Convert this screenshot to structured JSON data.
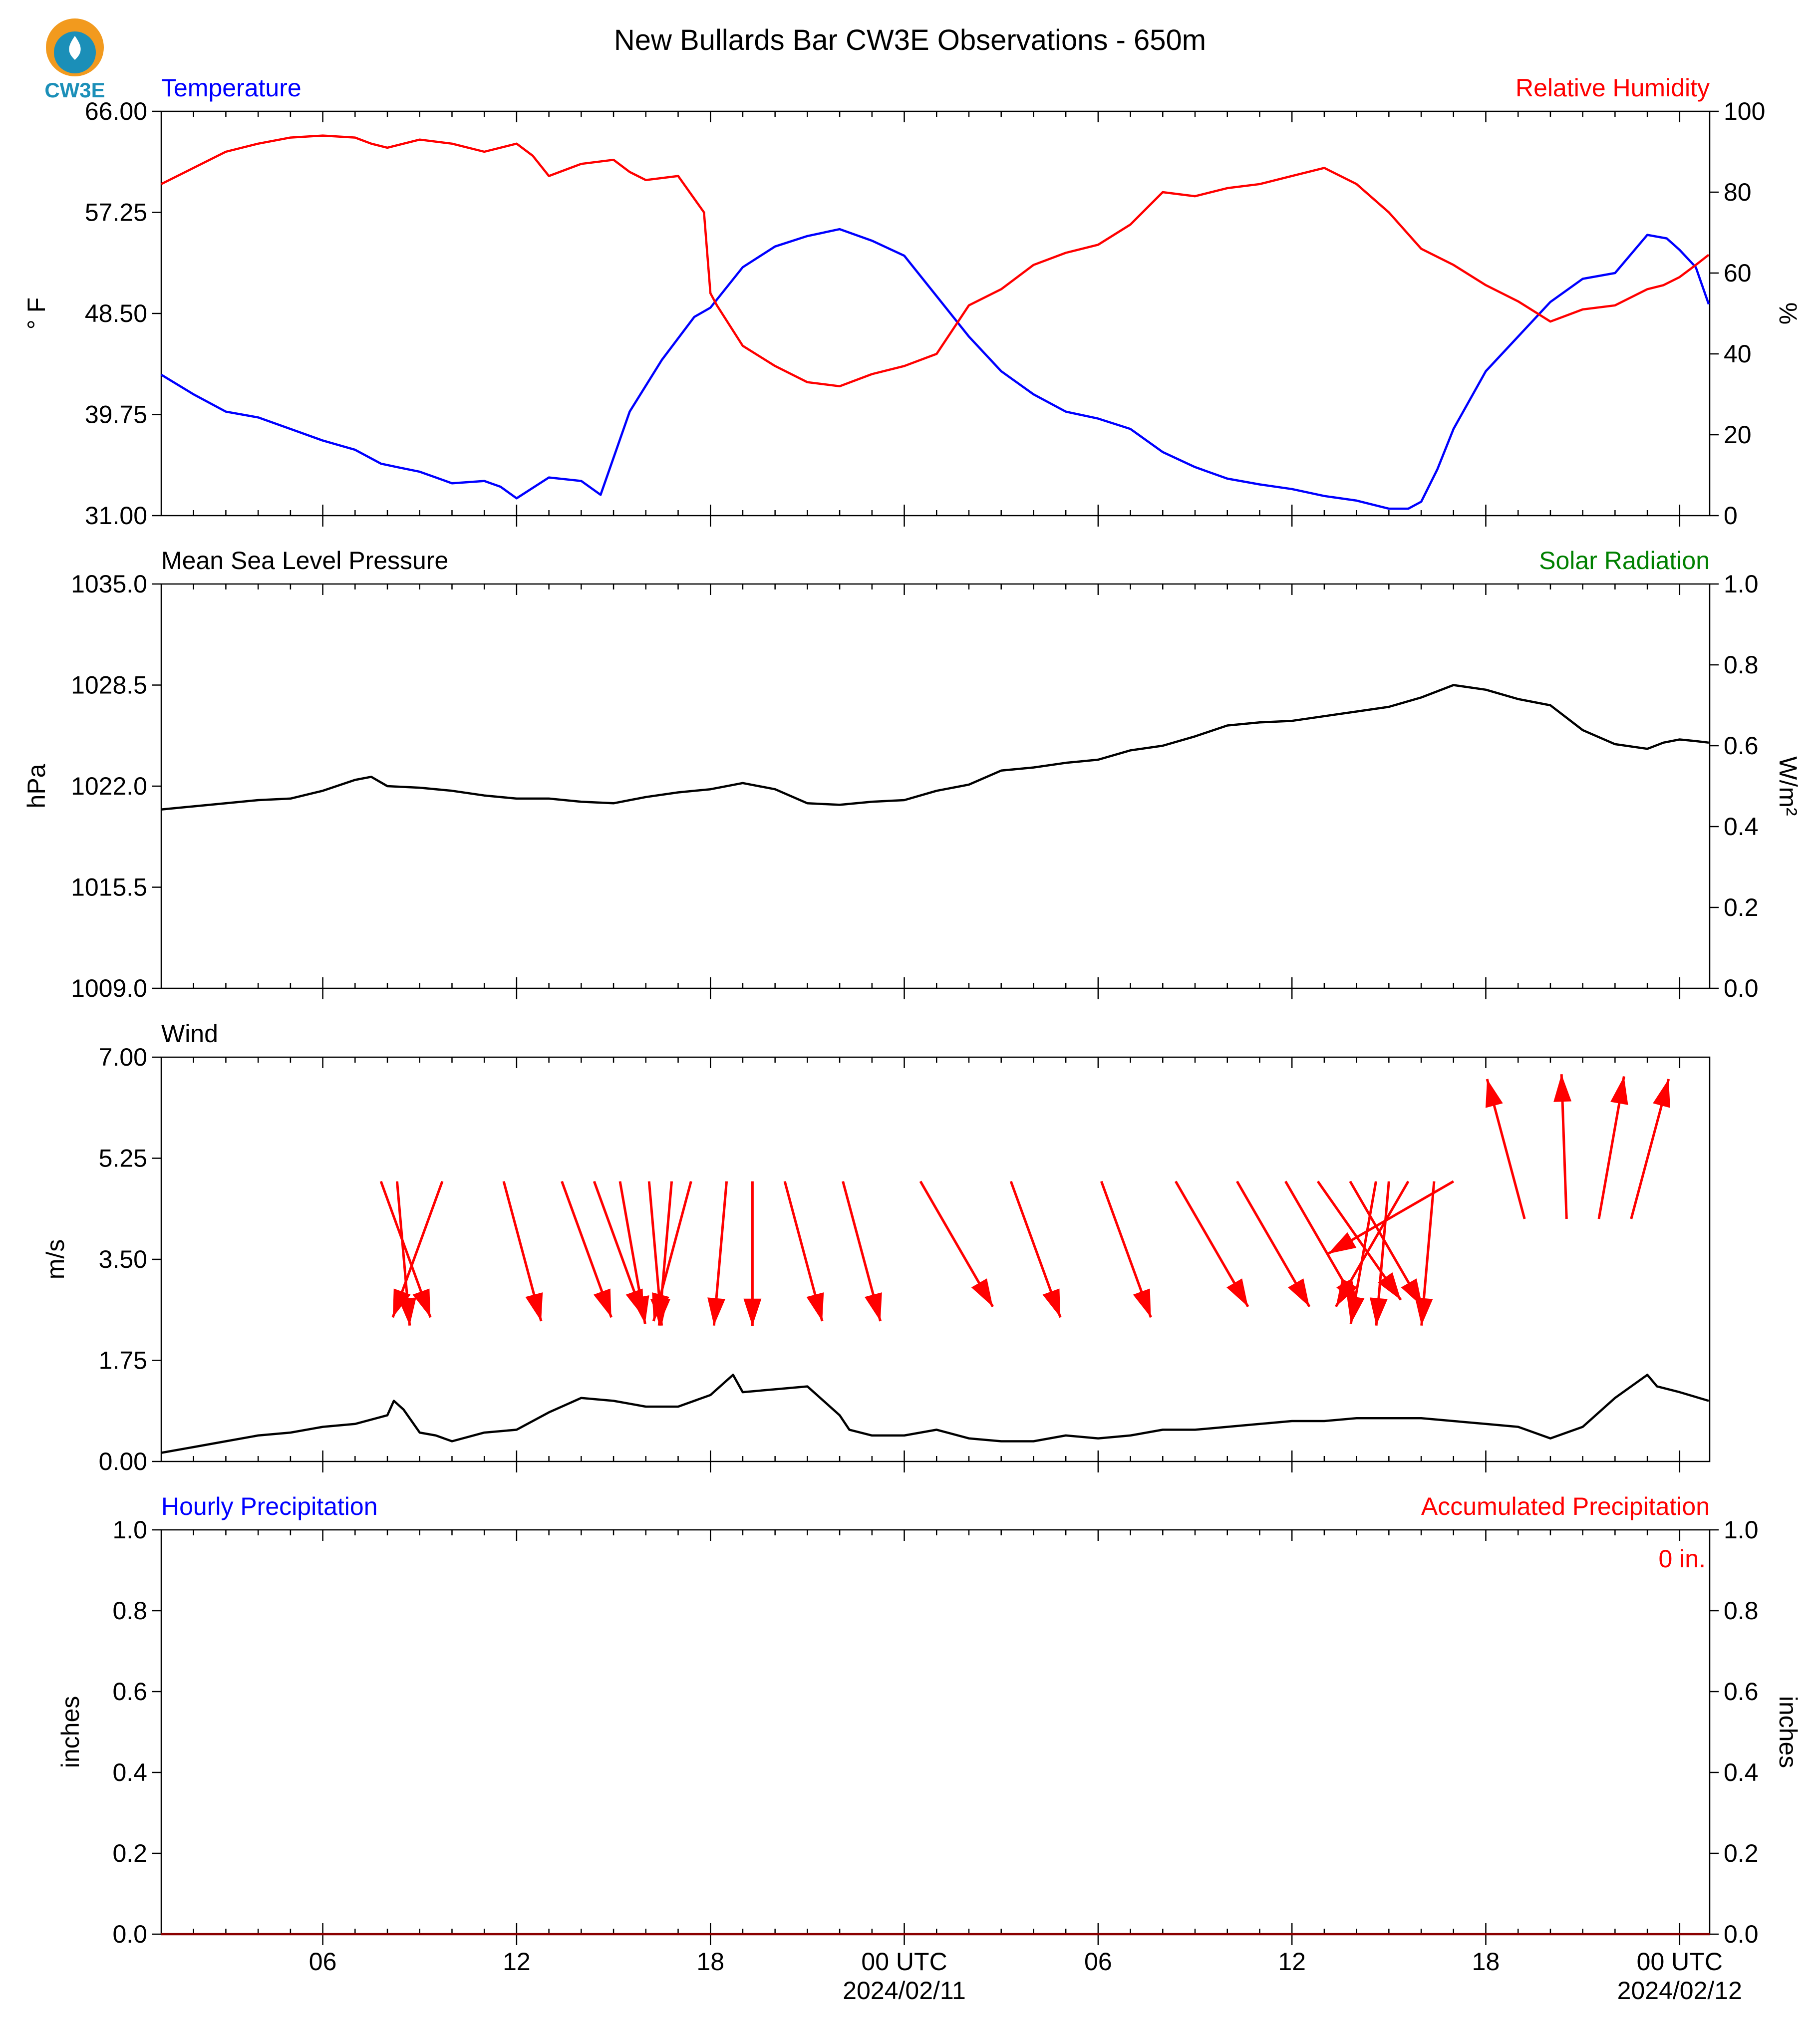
{
  "title": "New Bullards Bar CW3E Observations - 650m",
  "logo": {
    "text": "CW3E",
    "colors": [
      "#f29a1e",
      "#1b8fb8"
    ]
  },
  "colors": {
    "temperature": "#0000ff",
    "humidity": "#ff0000",
    "solar": "#008000",
    "black": "#000000"
  },
  "x_axis": {
    "start_hour": 1,
    "end_hour": 48.93,
    "ticks": [
      {
        "hour": 6,
        "label": "06",
        "date": ""
      },
      {
        "hour": 12,
        "label": "12",
        "date": ""
      },
      {
        "hour": 18,
        "label": "18",
        "date": ""
      },
      {
        "hour": 24,
        "label": "00 UTC",
        "date": "2024/02/11"
      },
      {
        "hour": 30,
        "label": "06",
        "date": ""
      },
      {
        "hour": 36,
        "label": "12",
        "date": ""
      },
      {
        "hour": 42,
        "label": "18",
        "date": ""
      },
      {
        "hour": 48,
        "label": "00 UTC",
        "date": "2024/02/12"
      }
    ]
  },
  "chart_data": [
    {
      "type": "line",
      "id": "temperature-humidity",
      "left_title": "Temperature",
      "right_title": "Relative Humidity",
      "ylabel": "° F",
      "ylabel_right": "%",
      "ylim": [
        31,
        66
      ],
      "ylim_right": [
        0,
        100
      ],
      "yticks": [
        "31.00",
        "39.75",
        "48.50",
        "57.25",
        "66.00"
      ],
      "yticks_right": [
        "0",
        "20",
        "40",
        "60",
        "80",
        "100"
      ],
      "series": [
        {
          "name": "Temperature",
          "axis": "left",
          "color": "#0000ff",
          "x": [
            1,
            2,
            3,
            4,
            5,
            6,
            7,
            7.8,
            8.3,
            9,
            10,
            11,
            11.5,
            12,
            13,
            14,
            14.6,
            15.5,
            16.5,
            17.5,
            18,
            19,
            20,
            21,
            22,
            23,
            24,
            25,
            26,
            27,
            28,
            29,
            30,
            31,
            32,
            33,
            34,
            35,
            36,
            37,
            38,
            39,
            39.6,
            40,
            40.5,
            41,
            42,
            43,
            44,
            45,
            46,
            47,
            47.6,
            48,
            48.5,
            48.9
          ],
          "y": [
            43.2,
            41.5,
            40,
            39.5,
            38.5,
            37.5,
            36.7,
            35.5,
            35.2,
            34.8,
            33.8,
            34,
            33.5,
            32.5,
            34.3,
            34,
            32.8,
            40,
            44.5,
            48.2,
            49,
            52.5,
            54.3,
            55.2,
            55.8,
            54.8,
            53.5,
            50,
            46.5,
            43.5,
            41.5,
            40,
            39.4,
            38.5,
            36.5,
            35.2,
            34.2,
            33.7,
            33.3,
            32.7,
            32.3,
            31.6,
            31.6,
            32.2,
            35,
            38.5,
            43.5,
            46.5,
            49.5,
            51.5,
            52,
            55.3,
            55,
            54,
            52.5,
            49.3
          ]
        },
        {
          "name": "Relative Humidity",
          "axis": "right",
          "color": "#ff0000",
          "x": [
            1,
            2,
            3,
            4,
            5,
            6,
            7,
            7.5,
            8,
            9,
            10,
            11,
            12,
            12.5,
            13,
            14,
            15,
            15.5,
            16,
            17,
            17.8,
            18,
            18.2,
            19,
            20,
            21,
            22,
            23,
            24,
            25,
            26,
            27,
            28,
            29,
            30,
            31,
            32,
            33,
            34,
            35,
            36,
            37,
            38,
            39,
            40,
            41,
            42,
            43,
            44,
            45,
            46,
            47,
            47.5,
            48,
            48.5,
            48.9
          ],
          "y": [
            82,
            86,
            90,
            92,
            93.5,
            94,
            93.5,
            92,
            91,
            93,
            92,
            90,
            92,
            89,
            84,
            87,
            88,
            85,
            83,
            84,
            75,
            55,
            52,
            42,
            37,
            33,
            32,
            35,
            37,
            40,
            52,
            56,
            62,
            65,
            67,
            72,
            80,
            79,
            81,
            82,
            84,
            86,
            82,
            75,
            66,
            62,
            57,
            53,
            48,
            51,
            52,
            56,
            57,
            59,
            62,
            64.5
          ]
        }
      ]
    },
    {
      "type": "line",
      "id": "pressure-solar",
      "left_title": "Mean Sea Level Pressure",
      "right_title": "Solar Radiation",
      "ylabel": "hPa",
      "ylabel_right": "W/m²",
      "ylim": [
        1009,
        1035
      ],
      "ylim_right": [
        0,
        1
      ],
      "yticks": [
        "1009.0",
        "1015.5",
        "1022.0",
        "1028.5",
        "1035.0"
      ],
      "yticks_right": [
        "0.0",
        "0.2",
        "0.4",
        "0.6",
        "0.8",
        "1.0"
      ],
      "series": [
        {
          "name": "Mean Sea Level Pressure",
          "axis": "left",
          "color": "#000000",
          "x": [
            1,
            2,
            3,
            4,
            5,
            6,
            7,
            7.5,
            8,
            9,
            10,
            11,
            12,
            13,
            14,
            15,
            16,
            17,
            18,
            19,
            20,
            21,
            22,
            23,
            24,
            25,
            26,
            27,
            28,
            29,
            30,
            31,
            32,
            33,
            34,
            35,
            36,
            37,
            38,
            39,
            40,
            41,
            42,
            43,
            44,
            45,
            46,
            47,
            47.5,
            48,
            48.5,
            48.9
          ],
          "y": [
            1020.5,
            1020.7,
            1020.9,
            1021.1,
            1021.2,
            1021.7,
            1022.4,
            1022.6,
            1022,
            1021.9,
            1021.7,
            1021.4,
            1021.2,
            1021.2,
            1021,
            1020.9,
            1021.3,
            1021.6,
            1021.8,
            1022.2,
            1021.8,
            1020.9,
            1020.8,
            1021,
            1021.1,
            1021.7,
            1022.1,
            1023,
            1023.2,
            1023.5,
            1023.7,
            1024.3,
            1024.6,
            1025.2,
            1025.9,
            1026.1,
            1026.2,
            1026.5,
            1026.8,
            1027.1,
            1027.7,
            1028.5,
            1028.2,
            1027.6,
            1027.2,
            1025.6,
            1024.7,
            1024.4,
            1024.8,
            1025,
            1024.9,
            1024.8
          ]
        }
      ]
    },
    {
      "type": "line",
      "id": "wind",
      "left_title": "Wind",
      "ylabel": "m/s",
      "ylim": [
        0,
        7
      ],
      "yticks": [
        "0.00",
        "1.75",
        "3.50",
        "5.25",
        "7.00"
      ],
      "series": [
        {
          "name": "Wind",
          "axis": "left",
          "color": "#000000",
          "x": [
            1,
            2,
            3,
            4,
            5,
            6,
            7,
            8,
            8.2,
            8.5,
            9,
            9.5,
            10,
            11,
            12,
            13,
            14,
            15,
            16,
            17,
            18,
            18.7,
            19,
            20,
            21,
            22,
            22.3,
            23,
            24,
            25,
            26,
            27,
            28,
            29,
            30,
            31,
            32,
            33,
            34,
            35,
            36,
            37,
            38,
            39,
            40,
            41,
            42,
            43,
            44,
            45,
            46,
            47,
            47.3,
            48,
            48.9
          ],
          "y": [
            0.15,
            0.25,
            0.35,
            0.45,
            0.5,
            0.6,
            0.65,
            0.8,
            1.05,
            0.9,
            0.5,
            0.45,
            0.35,
            0.5,
            0.55,
            0.85,
            1.1,
            1.05,
            0.95,
            0.95,
            1.15,
            1.5,
            1.2,
            1.25,
            1.3,
            0.8,
            0.55,
            0.45,
            0.45,
            0.55,
            0.4,
            0.35,
            0.35,
            0.45,
            0.4,
            0.45,
            0.55,
            0.55,
            0.6,
            0.65,
            0.7,
            0.7,
            0.75,
            0.75,
            0.75,
            0.7,
            0.65,
            0.6,
            0.4,
            0.6,
            1.1,
            1.5,
            1.3,
            1.2,
            1.05
          ]
        }
      ],
      "arrows": [
        {
          "hour": 7.8,
          "dir_deg": 340
        },
        {
          "hour": 8.3,
          "dir_deg": 355
        },
        {
          "hour": 9.7,
          "dir_deg": 20
        },
        {
          "hour": 11.6,
          "dir_deg": 345
        },
        {
          "hour": 13.4,
          "dir_deg": 340
        },
        {
          "hour": 14.4,
          "dir_deg": 340
        },
        {
          "hour": 15.2,
          "dir_deg": 350
        },
        {
          "hour": 16.1,
          "dir_deg": 355
        },
        {
          "hour": 16.8,
          "dir_deg": 5
        },
        {
          "hour": 17.4,
          "dir_deg": 15
        },
        {
          "hour": 18.5,
          "dir_deg": 5
        },
        {
          "hour": 19.3,
          "dir_deg": 0
        },
        {
          "hour": 20.3,
          "dir_deg": 345
        },
        {
          "hour": 22.1,
          "dir_deg": 345
        },
        {
          "hour": 24.5,
          "dir_deg": 330
        },
        {
          "hour": 27.3,
          "dir_deg": 340
        },
        {
          "hour": 30.1,
          "dir_deg": 340
        },
        {
          "hour": 32.4,
          "dir_deg": 330
        },
        {
          "hour": 34.3,
          "dir_deg": 330
        },
        {
          "hour": 35.8,
          "dir_deg": 330
        },
        {
          "hour": 36.8,
          "dir_deg": 325
        },
        {
          "hour": 37.8,
          "dir_deg": 330
        },
        {
          "hour": 38.6,
          "dir_deg": 10
        },
        {
          "hour": 39,
          "dir_deg": 5
        },
        {
          "hour": 39.6,
          "dir_deg": 30
        },
        {
          "hour": 40.4,
          "dir_deg": 5
        },
        {
          "hour": 41,
          "dir_deg": 60
        },
        {
          "hour": 43.2,
          "dir_deg": 165
        },
        {
          "hour": 44.5,
          "dir_deg": 178
        },
        {
          "hour": 45.5,
          "dir_deg": 190
        },
        {
          "hour": 46.5,
          "dir_deg": 195
        }
      ]
    },
    {
      "type": "area",
      "id": "precipitation",
      "left_title": "Hourly Precipitation",
      "right_title": "Accumulated Precipitation",
      "ylabel": "inches",
      "ylabel_right": "inches",
      "ylim": [
        0,
        1
      ],
      "ylim_right": [
        0,
        1
      ],
      "yticks": [
        "0.0",
        "0.2",
        "0.4",
        "0.6",
        "0.8",
        "1.0"
      ],
      "yticks_right": [
        "0.0",
        "0.2",
        "0.4",
        "0.6",
        "0.8",
        "1.0"
      ],
      "annotation": "0 in.",
      "series": [
        {
          "name": "Accumulated Precipitation",
          "axis": "right",
          "color": "#8b0000",
          "x": [
            1,
            48.93
          ],
          "y": [
            0,
            0
          ]
        }
      ]
    }
  ]
}
